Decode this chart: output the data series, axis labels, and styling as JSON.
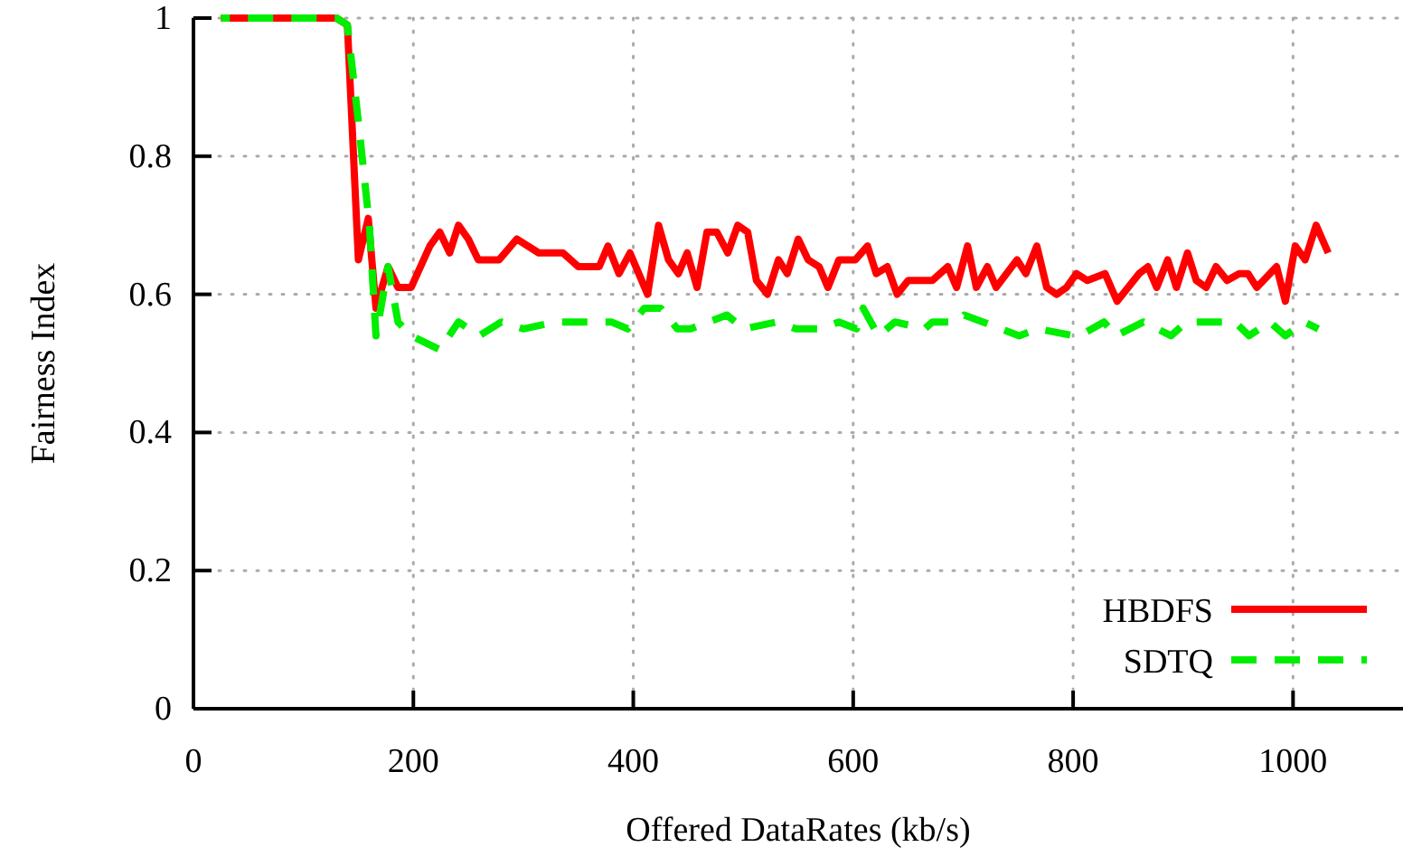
{
  "chart_data": {
    "type": "line",
    "xlabel": "Offered DataRates (kb/s)",
    "ylabel": "Fairness Index",
    "xlim": [
      0,
      1100
    ],
    "ylim": [
      0,
      1
    ],
    "xticks": [
      0,
      200,
      400,
      600,
      800,
      1000
    ],
    "yticks": [
      0,
      0.2,
      0.4,
      0.6,
      0.8,
      1
    ],
    "grid": true,
    "legend": "bottom right",
    "marker": "none",
    "series": [
      {
        "name": "HBDFS",
        "color": "#ff0000",
        "line_style": "solid",
        "x": [
          25,
          60,
          100,
          130,
          140,
          150,
          159,
          166,
          177,
          186,
          198,
          215,
          224,
          233,
          241,
          250,
          259,
          278,
          294,
          314,
          336,
          350,
          369,
          377,
          387,
          397,
          413,
          423,
          432,
          441,
          449,
          458,
          467,
          476,
          486,
          495,
          504,
          512,
          522,
          532,
          540,
          550,
          559,
          569,
          577,
          587,
          602,
          613,
          621,
          631,
          640,
          650,
          664,
          672,
          686,
          694,
          704,
          712,
          722,
          730,
          749,
          757,
          767,
          776,
          785,
          794,
          803,
          813,
          829,
          840,
          860,
          868,
          876,
          886,
          894,
          904,
          912,
          921,
          930,
          940,
          951,
          959,
          967,
          985,
          993,
          1002,
          1011,
          1021,
          1032
        ],
        "values": [
          1,
          1,
          1,
          1,
          0.99,
          0.65,
          0.71,
          0.58,
          0.64,
          0.61,
          0.61,
          0.67,
          0.69,
          0.66,
          0.7,
          0.68,
          0.65,
          0.65,
          0.68,
          0.66,
          0.66,
          0.64,
          0.64,
          0.67,
          0.63,
          0.66,
          0.6,
          0.7,
          0.65,
          0.63,
          0.66,
          0.61,
          0.69,
          0.69,
          0.66,
          0.7,
          0.69,
          0.62,
          0.6,
          0.65,
          0.63,
          0.68,
          0.65,
          0.64,
          0.61,
          0.65,
          0.65,
          0.67,
          0.63,
          0.64,
          0.6,
          0.62,
          0.62,
          0.62,
          0.64,
          0.61,
          0.67,
          0.61,
          0.64,
          0.61,
          0.65,
          0.63,
          0.67,
          0.61,
          0.6,
          0.61,
          0.63,
          0.62,
          0.63,
          0.59,
          0.63,
          0.64,
          0.61,
          0.65,
          0.61,
          0.66,
          0.62,
          0.61,
          0.64,
          0.62,
          0.63,
          0.63,
          0.61,
          0.64,
          0.59,
          0.67,
          0.65,
          0.7,
          0.66
        ]
      },
      {
        "name": "SDTQ",
        "color": "#00ee00",
        "line_style": "dashed",
        "x": [
          25,
          60,
          100,
          130,
          140,
          150,
          160,
          166,
          177,
          186,
          198,
          224,
          241,
          260,
          280,
          300,
          330,
          350,
          380,
          395,
          410,
          425,
          440,
          452,
          485,
          501,
          531,
          548,
          570,
          587,
          603,
          609,
          623,
          638,
          665,
          672,
          694,
          701,
          718,
          751,
          768,
          801,
          806,
          828,
          839,
          864,
          889,
          903,
          928,
          947,
          960,
          979,
          993,
          1010,
          1023
        ],
        "values": [
          1,
          1,
          1,
          1,
          0.99,
          0.85,
          0.7,
          0.54,
          0.64,
          0.56,
          0.54,
          0.52,
          0.56,
          0.54,
          0.56,
          0.55,
          0.56,
          0.56,
          0.56,
          0.55,
          0.58,
          0.58,
          0.55,
          0.55,
          0.57,
          0.55,
          0.56,
          0.55,
          0.55,
          0.56,
          0.55,
          0.58,
          0.54,
          0.56,
          0.55,
          0.56,
          0.56,
          0.57,
          0.56,
          0.54,
          0.55,
          0.54,
          0.54,
          0.56,
          0.54,
          0.56,
          0.54,
          0.56,
          0.56,
          0.56,
          0.54,
          0.56,
          0.54,
          0.56,
          0.55
        ]
      }
    ]
  }
}
